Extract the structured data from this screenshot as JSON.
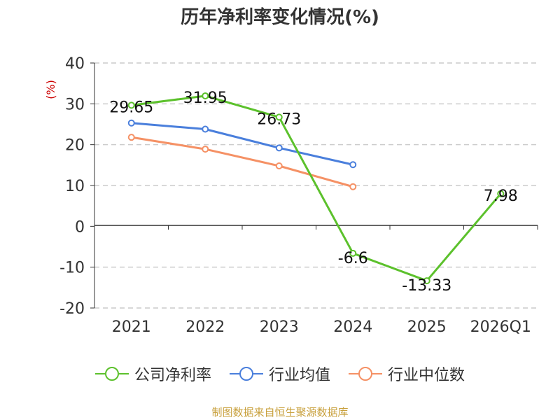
{
  "title": "历年净利率变化情况(%)",
  "source": "制图数据来自恒生聚源数据库",
  "colors": {
    "company": "#5cc12c",
    "industry_avg": "#4a7fdc",
    "industry_median": "#f59165",
    "grid": "#cccccc",
    "axis": "#333333"
  },
  "chart_data": {
    "type": "line",
    "title": "历年净利率变化情况(%)",
    "ylabel": "(%)",
    "xlabel": "",
    "categories": [
      "2021",
      "2022",
      "2023",
      "2024",
      "2025",
      "2026Q1"
    ],
    "ylim": [
      -20,
      40
    ],
    "yticks": [
      40,
      30,
      20,
      10,
      0,
      -10,
      -20
    ],
    "grid": "horizontal dashed",
    "legend_position": "bottom",
    "series": [
      {
        "name": "公司净利率",
        "color_key": "company",
        "values": [
          29.65,
          31.95,
          26.73,
          -6.6,
          -13.33,
          7.98
        ],
        "labels": [
          "29.65",
          "31.95",
          "26.73",
          "-6.6",
          "-13.33",
          "7.98"
        ]
      },
      {
        "name": "行业均值",
        "color_key": "industry_avg",
        "values": [
          25.3,
          23.8,
          19.2,
          15.1,
          null,
          null
        ]
      },
      {
        "name": "行业中位数",
        "color_key": "industry_median",
        "values": [
          21.8,
          18.9,
          14.8,
          9.7,
          null,
          null
        ]
      }
    ]
  }
}
